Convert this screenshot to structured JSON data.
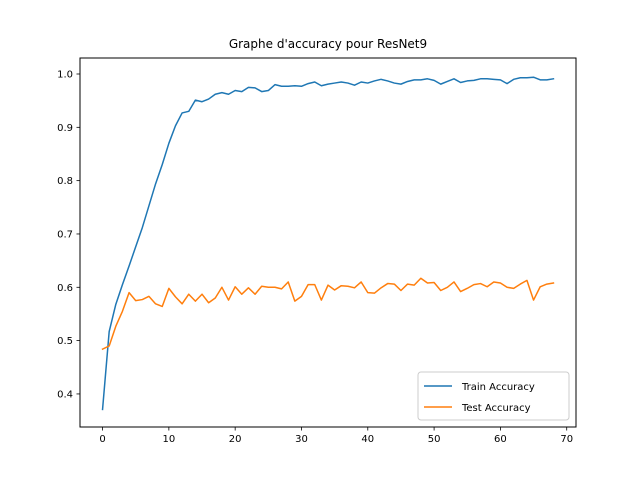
{
  "chart_data": {
    "type": "line",
    "title": "Graphe d'accuracy pour ResNet9",
    "xlabel": "",
    "ylabel": "",
    "xlim": [
      -3.4,
      71.4
    ],
    "ylim": [
      0.338,
      1.03
    ],
    "xticks": [
      0,
      10,
      20,
      30,
      40,
      50,
      60,
      70
    ],
    "yticks": [
      0.4,
      0.5,
      0.6,
      0.7,
      0.8,
      0.9,
      1.0
    ],
    "xtick_labels": [
      "0",
      "10",
      "20",
      "30",
      "40",
      "50",
      "60",
      "70"
    ],
    "ytick_labels": [
      "0.4",
      "0.5",
      "0.6",
      "0.7",
      "0.8",
      "0.9",
      "1.0"
    ],
    "grid": false,
    "legend": "lower-right",
    "series": [
      {
        "name": "Train Accuracy",
        "color": "#1f77b4",
        "x": [
          0,
          1,
          2,
          3,
          4,
          5,
          6,
          7,
          8,
          9,
          10,
          11,
          12,
          13,
          14,
          15,
          16,
          17,
          18,
          19,
          20,
          21,
          22,
          23,
          24,
          25,
          26,
          27,
          28,
          29,
          30,
          31,
          32,
          33,
          34,
          35,
          36,
          37,
          38,
          39,
          40,
          41,
          42,
          43,
          44,
          45,
          46,
          47,
          48,
          49,
          50,
          51,
          52,
          53,
          54,
          55,
          56,
          57,
          58,
          59,
          60,
          61,
          62,
          63,
          64,
          65,
          66,
          67,
          68
        ],
        "values": [
          0.371,
          0.517,
          0.568,
          0.605,
          0.64,
          0.676,
          0.712,
          0.753,
          0.794,
          0.83,
          0.87,
          0.903,
          0.927,
          0.93,
          0.951,
          0.948,
          0.953,
          0.962,
          0.965,
          0.962,
          0.969,
          0.967,
          0.975,
          0.974,
          0.967,
          0.969,
          0.98,
          0.977,
          0.977,
          0.978,
          0.977,
          0.982,
          0.985,
          0.978,
          0.981,
          0.983,
          0.985,
          0.983,
          0.979,
          0.985,
          0.983,
          0.987,
          0.99,
          0.987,
          0.983,
          0.981,
          0.986,
          0.989,
          0.989,
          0.991,
          0.988,
          0.981,
          0.986,
          0.991,
          0.984,
          0.987,
          0.988,
          0.991,
          0.991,
          0.99,
          0.989,
          0.982,
          0.99,
          0.993,
          0.993,
          0.994,
          0.989,
          0.989,
          0.991
        ]
      },
      {
        "name": "Test Accuracy",
        "color": "#ff7f0e",
        "x": [
          0,
          1,
          2,
          3,
          4,
          5,
          6,
          7,
          8,
          9,
          10,
          11,
          12,
          13,
          14,
          15,
          16,
          17,
          18,
          19,
          20,
          21,
          22,
          23,
          24,
          25,
          26,
          27,
          28,
          29,
          30,
          31,
          32,
          33,
          34,
          35,
          36,
          37,
          38,
          39,
          40,
          41,
          42,
          43,
          44,
          45,
          46,
          47,
          48,
          49,
          50,
          51,
          52,
          53,
          54,
          55,
          56,
          57,
          58,
          59,
          60,
          61,
          62,
          63,
          64,
          65,
          66,
          67,
          68
        ],
        "values": [
          0.484,
          0.49,
          0.527,
          0.555,
          0.59,
          0.575,
          0.577,
          0.583,
          0.569,
          0.564,
          0.598,
          0.582,
          0.569,
          0.587,
          0.574,
          0.587,
          0.571,
          0.58,
          0.6,
          0.576,
          0.601,
          0.587,
          0.599,
          0.587,
          0.602,
          0.6,
          0.6,
          0.597,
          0.61,
          0.574,
          0.583,
          0.605,
          0.605,
          0.576,
          0.604,
          0.595,
          0.603,
          0.602,
          0.599,
          0.61,
          0.59,
          0.589,
          0.599,
          0.607,
          0.606,
          0.594,
          0.606,
          0.604,
          0.617,
          0.608,
          0.609,
          0.594,
          0.6,
          0.61,
          0.592,
          0.598,
          0.605,
          0.607,
          0.601,
          0.61,
          0.608,
          0.6,
          0.598,
          0.606,
          0.613,
          0.576,
          0.601,
          0.606,
          0.608
        ]
      }
    ]
  }
}
